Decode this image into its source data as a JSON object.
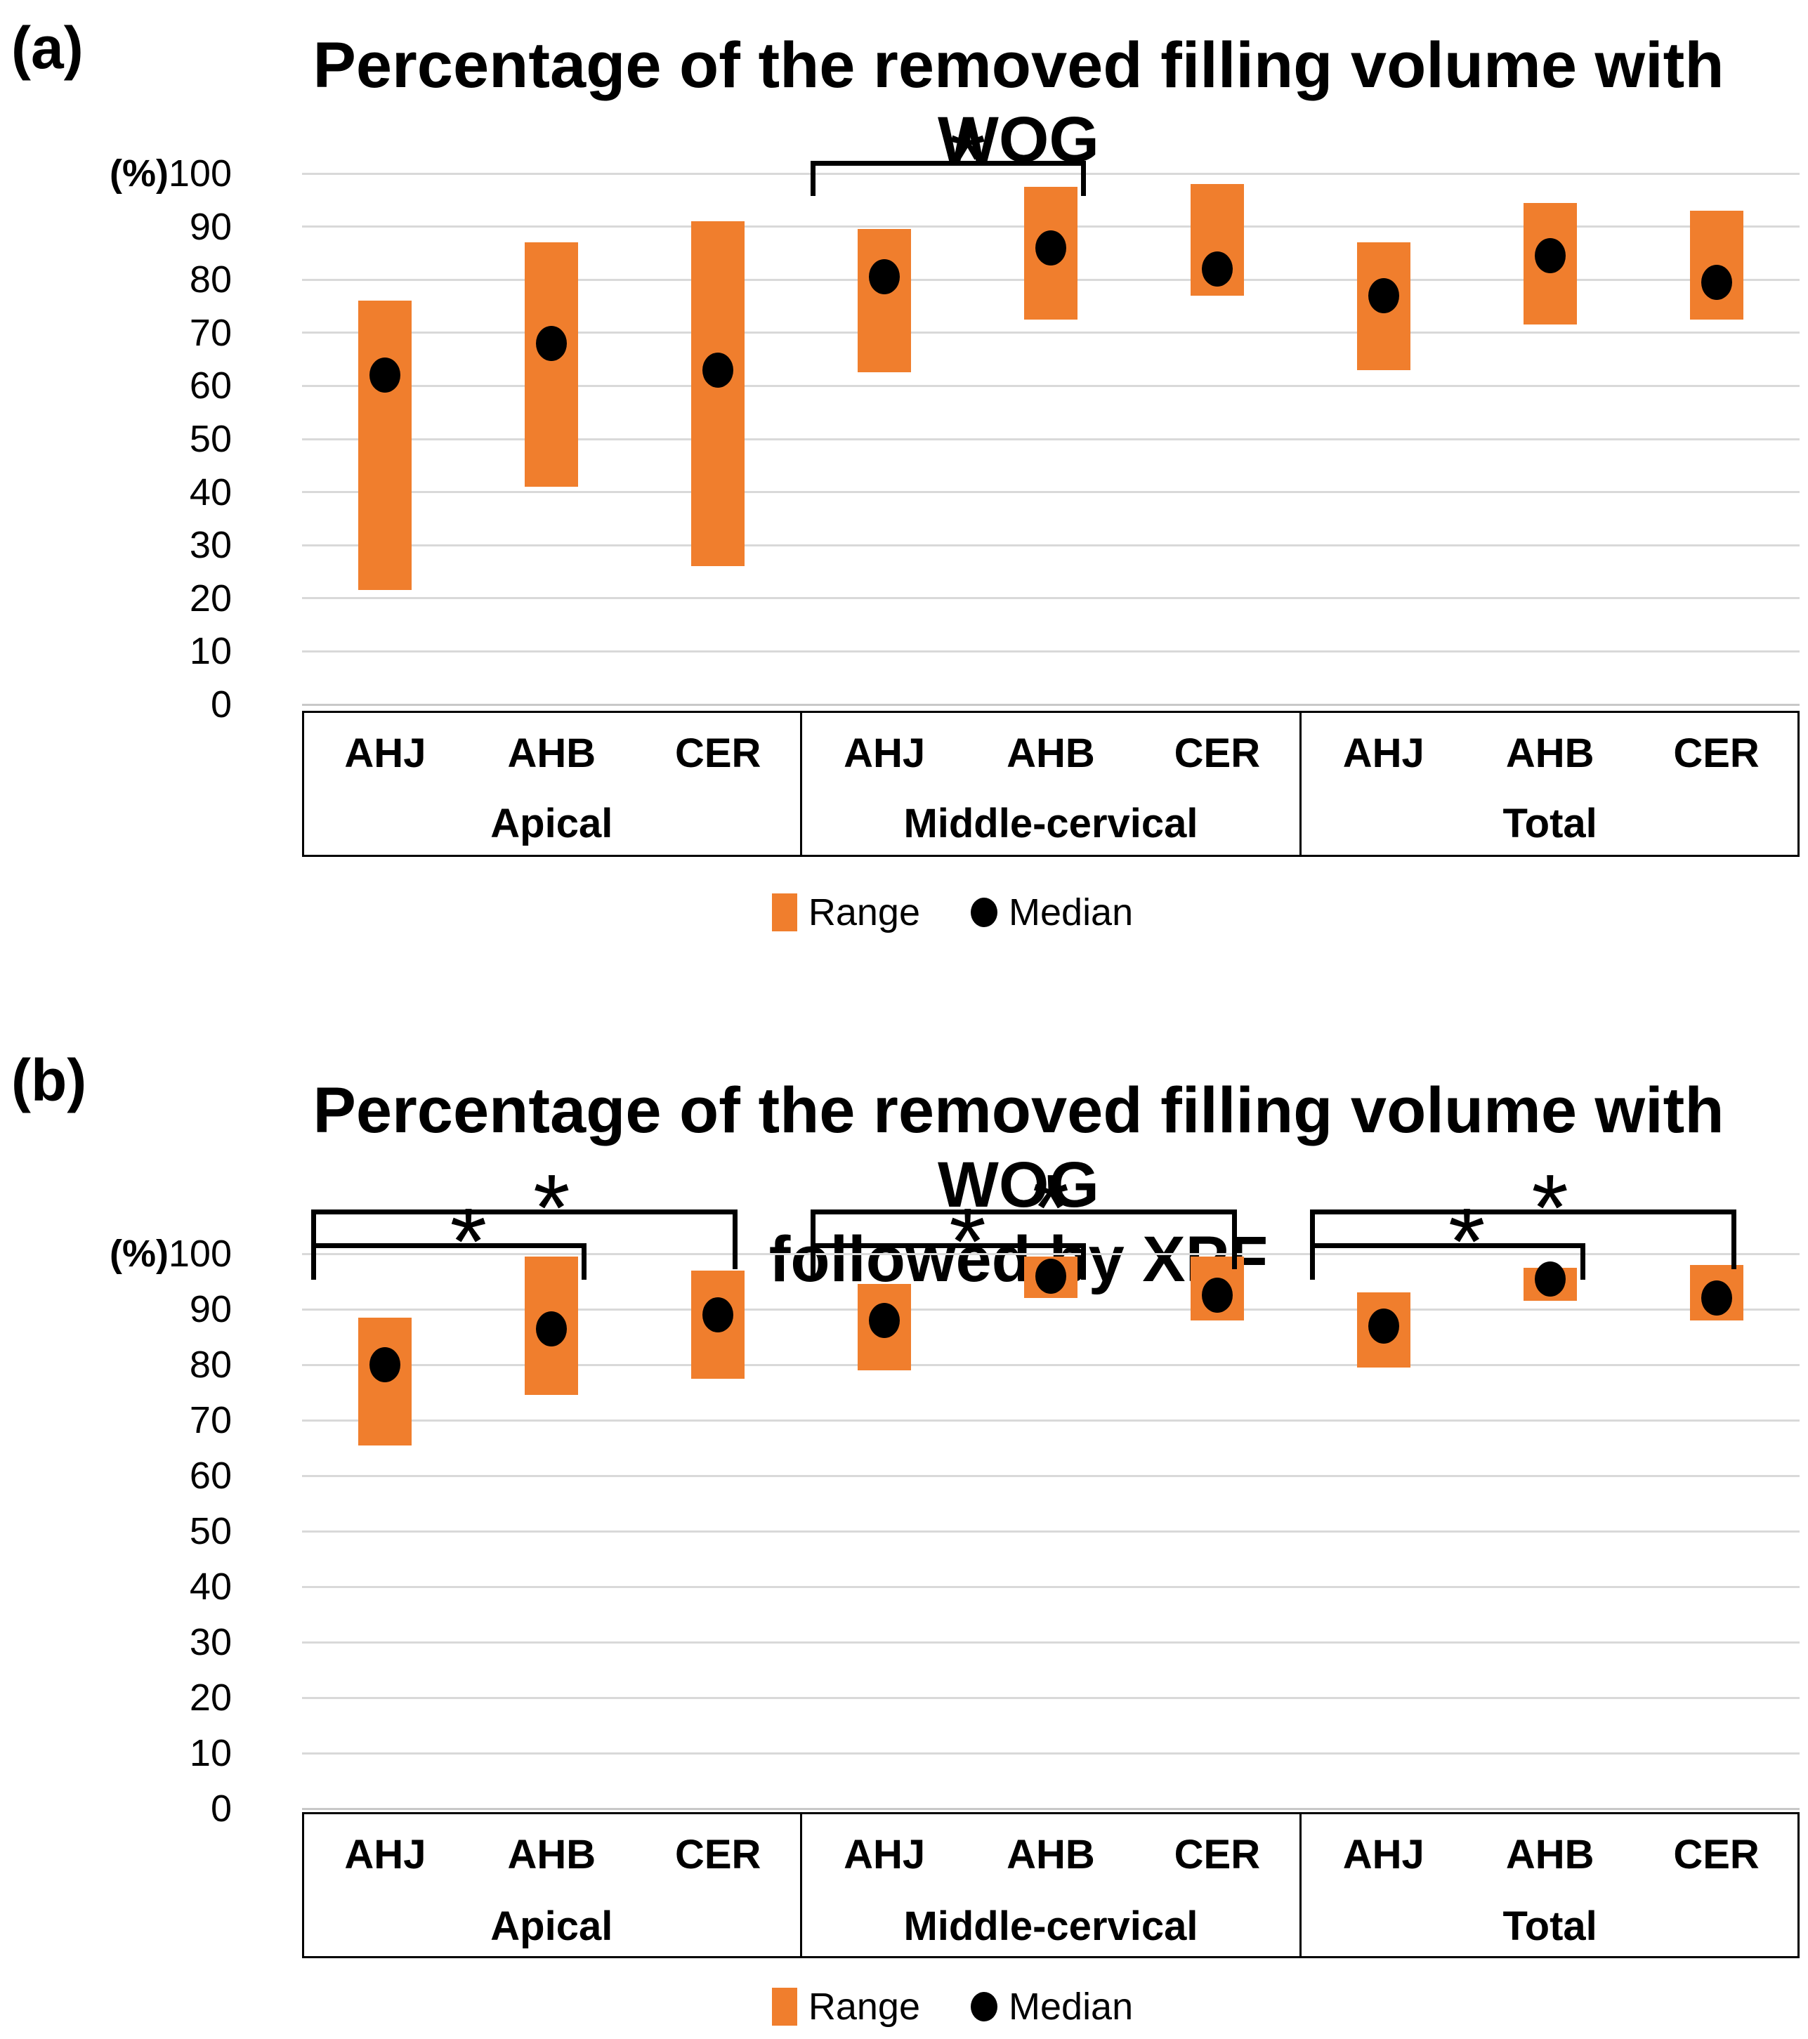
{
  "colors": {
    "range": "#F07E2D",
    "median": "#000000",
    "gridline": "#D9D9D9",
    "axis_line": "#C8C8C8",
    "bracket": "#000000",
    "text": "#000000"
  },
  "chart_data": [
    {
      "type": "bar",
      "subtype": "floating-range-bar-with-median",
      "panel_label": "(a)",
      "title_lines": [
        "Percentage of the removed filling volume with WOG"
      ],
      "ylabel": "(%)",
      "ylim": [
        0,
        100
      ],
      "yticks": [
        100,
        90,
        80,
        70,
        60,
        50,
        40,
        30,
        20,
        10,
        0
      ],
      "grid": true,
      "legend_position": "bottom",
      "categories": [
        "AHJ",
        "AHB",
        "CER"
      ],
      "groups": [
        {
          "label": "Apical",
          "bars": [
            {
              "category": "AHJ",
              "min": 21.5,
              "max": 76,
              "median": 62
            },
            {
              "category": "AHB",
              "min": 41,
              "max": 87,
              "median": 68
            },
            {
              "category": "CER",
              "min": 26,
              "max": 91,
              "median": 63
            }
          ]
        },
        {
          "label": "Middle-cervical",
          "bars": [
            {
              "category": "AHJ",
              "min": 62.5,
              "max": 89.5,
              "median": 80.5
            },
            {
              "category": "AHB",
              "min": 72.5,
              "max": 97.5,
              "median": 86
            },
            {
              "category": "CER",
              "min": 77,
              "max": 98,
              "median": 82
            }
          ]
        },
        {
          "label": "Total",
          "bars": [
            {
              "category": "AHJ",
              "min": 63,
              "max": 87,
              "median": 77
            },
            {
              "category": "AHB",
              "min": 71.5,
              "max": 94.5,
              "median": 84.5
            },
            {
              "category": "CER",
              "min": 72.5,
              "max": 93,
              "median": 79.5
            }
          ]
        }
      ],
      "significance": [
        {
          "group": 1,
          "pair": [
            0,
            1
          ],
          "symbol": "*",
          "tier": "inner"
        }
      ],
      "legend": [
        {
          "marker": "range",
          "label": "Range"
        },
        {
          "marker": "median",
          "label": "Median"
        }
      ]
    },
    {
      "type": "bar",
      "subtype": "floating-range-bar-with-median",
      "panel_label": "(b)",
      "title_lines": [
        "Percentage of the removed filling volume with WOG",
        "followed by XPF"
      ],
      "ylabel": "(%)",
      "ylim": [
        0,
        100
      ],
      "yticks": [
        100,
        90,
        80,
        70,
        60,
        50,
        40,
        30,
        20,
        10,
        0
      ],
      "grid": true,
      "legend_position": "bottom",
      "categories": [
        "AHJ",
        "AHB",
        "CER"
      ],
      "groups": [
        {
          "label": "Apical",
          "bars": [
            {
              "category": "AHJ",
              "min": 65.5,
              "max": 88.5,
              "median": 80
            },
            {
              "category": "AHB",
              "min": 74.5,
              "max": 99.5,
              "median": 86.5
            },
            {
              "category": "CER",
              "min": 77.5,
              "max": 97,
              "median": 89
            }
          ]
        },
        {
          "label": "Middle-cervical",
          "bars": [
            {
              "category": "AHJ",
              "min": 79,
              "max": 94.5,
              "median": 88
            },
            {
              "category": "AHB",
              "min": 92,
              "max": 99.5,
              "median": 96
            },
            {
              "category": "CER",
              "min": 88,
              "max": 99.5,
              "median": 92.5
            }
          ]
        },
        {
          "label": "Total",
          "bars": [
            {
              "category": "AHJ",
              "min": 79.5,
              "max": 93,
              "median": 87
            },
            {
              "category": "AHB",
              "min": 91.5,
              "max": 97.5,
              "median": 95.5
            },
            {
              "category": "CER",
              "min": 88,
              "max": 98,
              "median": 92
            }
          ]
        }
      ],
      "significance": [
        {
          "group": 0,
          "pair": [
            0,
            1
          ],
          "symbol": "*",
          "tier": "inner"
        },
        {
          "group": 0,
          "pair": [
            0,
            2
          ],
          "symbol": "*",
          "tier": "outer"
        },
        {
          "group": 1,
          "pair": [
            0,
            1
          ],
          "symbol": "*",
          "tier": "inner"
        },
        {
          "group": 1,
          "pair": [
            0,
            2
          ],
          "symbol": "*",
          "tier": "outer"
        },
        {
          "group": 2,
          "pair": [
            0,
            1
          ],
          "symbol": "*",
          "tier": "inner"
        },
        {
          "group": 2,
          "pair": [
            0,
            2
          ],
          "symbol": "*",
          "tier": "outer"
        }
      ],
      "legend": [
        {
          "marker": "range",
          "label": "Range"
        },
        {
          "marker": "median",
          "label": "Median"
        }
      ]
    }
  ]
}
